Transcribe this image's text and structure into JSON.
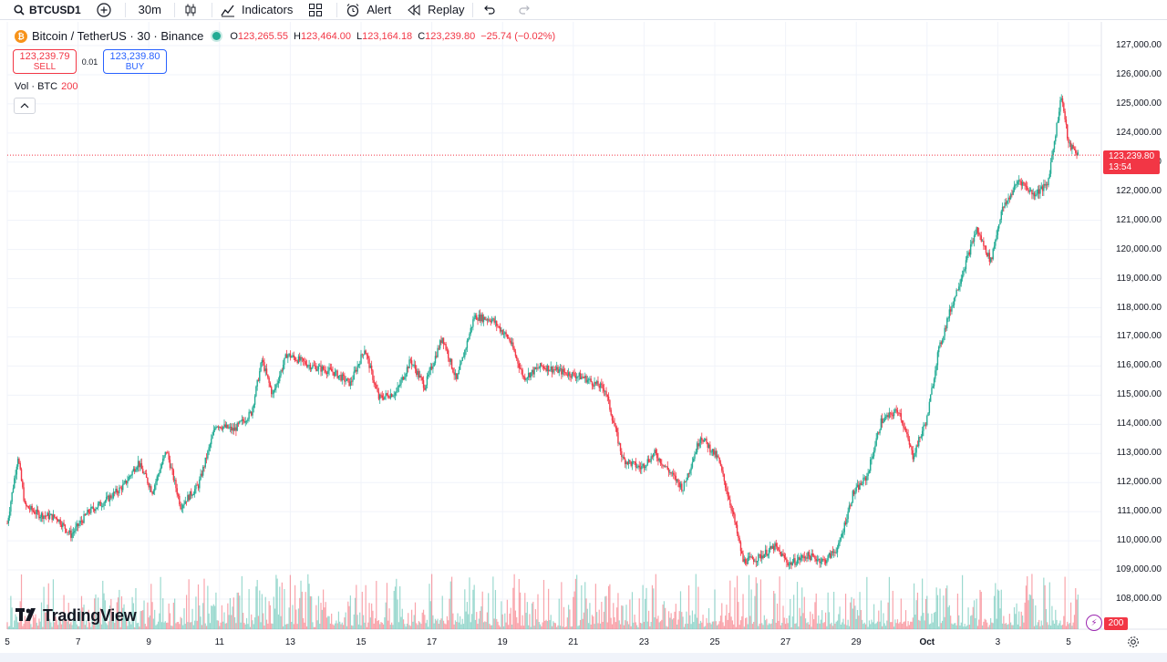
{
  "toolbar": {
    "symbol": "BTCUSD1",
    "interval": "30m",
    "indicators_label": "Indicators",
    "alert_label": "Alert",
    "replay_label": "Replay"
  },
  "legend": {
    "title": "Bitcoin / TetherUS · 30 · Binance",
    "coin_glyph": "₿",
    "o_label": "O",
    "o_value": "123,265.55",
    "h_label": "H",
    "h_value": "123,464.00",
    "l_label": "L",
    "l_value": "123,164.18",
    "c_label": "C",
    "c_value": "123,239.80",
    "change": "−25.74 (−0.02%)"
  },
  "trade": {
    "sell_price": "123,239.79",
    "sell_label": "SELL",
    "spread": "0.01",
    "buy_price": "123,239.80",
    "buy_label": "BUY"
  },
  "volume_legend": {
    "label": "Vol · BTC",
    "value": "200"
  },
  "last_price": {
    "price": "123,239.80",
    "countdown": "13:54"
  },
  "volume_badge": "200",
  "watermark": "TradingView",
  "colors": {
    "up": "#22ab94",
    "down": "#f23645",
    "grid": "#f0f3fa",
    "accent": "#2962ff"
  },
  "chart_data": {
    "type": "candlestick",
    "price_ticks": [
      "127,000.00",
      "126,000.00",
      "125,000.00",
      "124,000.00",
      "123,000.00",
      "122,000.00",
      "121,000.00",
      "120,000.00",
      "119,000.00",
      "118,000.00",
      "117,000.00",
      "116,000.00",
      "115,000.00",
      "114,000.00",
      "113,000.00",
      "112,000.00",
      "111,000.00",
      "110,000.00",
      "109,000.00",
      "108,000.00"
    ],
    "time_ticks": [
      "5",
      "7",
      "9",
      "11",
      "13",
      "15",
      "17",
      "19",
      "21",
      "23",
      "25",
      "27",
      "29",
      "Oct",
      "3",
      "5"
    ],
    "ylim": [
      107000,
      127500
    ],
    "last_price": 123239.8,
    "close_path_day_values": [
      [
        5.0,
        110600
      ],
      [
        5.3,
        112900
      ],
      [
        5.5,
        111200
      ],
      [
        5.9,
        110900
      ],
      [
        6.4,
        110800
      ],
      [
        6.8,
        110200
      ],
      [
        7.3,
        111000
      ],
      [
        7.8,
        111400
      ],
      [
        8.3,
        111900
      ],
      [
        8.7,
        112700
      ],
      [
        9.1,
        111700
      ],
      [
        9.5,
        113100
      ],
      [
        9.9,
        111200
      ],
      [
        10.4,
        111900
      ],
      [
        10.9,
        114000
      ],
      [
        11.4,
        113800
      ],
      [
        11.9,
        114400
      ],
      [
        12.2,
        116200
      ],
      [
        12.5,
        115000
      ],
      [
        12.9,
        116400
      ],
      [
        13.6,
        116000
      ],
      [
        14.2,
        115800
      ],
      [
        14.7,
        115400
      ],
      [
        15.1,
        116600
      ],
      [
        15.5,
        114900
      ],
      [
        16.0,
        115100
      ],
      [
        16.4,
        116200
      ],
      [
        16.8,
        115300
      ],
      [
        17.3,
        117000
      ],
      [
        17.7,
        115500
      ],
      [
        18.2,
        117700
      ],
      [
        18.7,
        117600
      ],
      [
        19.2,
        116900
      ],
      [
        19.6,
        115600
      ],
      [
        20.1,
        116000
      ],
      [
        20.7,
        115800
      ],
      [
        21.3,
        115600
      ],
      [
        21.9,
        115200
      ],
      [
        22.4,
        112800
      ],
      [
        22.9,
        112500
      ],
      [
        23.3,
        113000
      ],
      [
        23.7,
        112400
      ],
      [
        24.1,
        111800
      ],
      [
        24.6,
        113600
      ],
      [
        25.1,
        112800
      ],
      [
        25.5,
        111000
      ],
      [
        25.8,
        109300
      ],
      [
        26.2,
        109400
      ],
      [
        26.7,
        109800
      ],
      [
        27.1,
        109200
      ],
      [
        27.6,
        109500
      ],
      [
        28.1,
        109300
      ],
      [
        28.5,
        109800
      ],
      [
        28.9,
        111600
      ],
      [
        29.3,
        112200
      ],
      [
        29.7,
        114100
      ],
      [
        30.2,
        114500
      ],
      [
        30.6,
        112900
      ],
      [
        31.0,
        114200
      ],
      [
        31.3,
        116400
      ],
      [
        31.6,
        117700
      ],
      [
        32.0,
        119200
      ],
      [
        32.4,
        120700
      ],
      [
        32.8,
        119600
      ],
      [
        33.1,
        121300
      ],
      [
        33.6,
        122400
      ],
      [
        34.0,
        121900
      ],
      [
        34.4,
        122200
      ],
      [
        34.8,
        125300
      ],
      [
        35.0,
        123600
      ],
      [
        35.3,
        123240
      ]
    ]
  }
}
